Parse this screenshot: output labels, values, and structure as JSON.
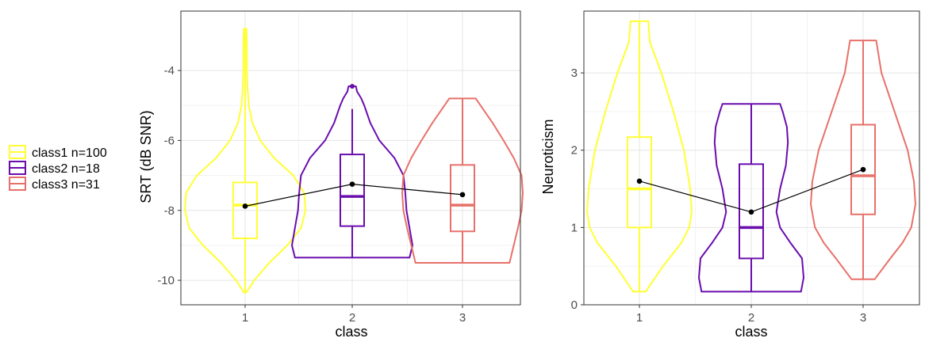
{
  "legend": {
    "items": [
      {
        "label": "class1 n=100",
        "color": "#FFFF33"
      },
      {
        "label": "class2 n=18",
        "color": "#6A0DAD"
      },
      {
        "label": "class3 n=31",
        "color": "#E8706A"
      }
    ]
  },
  "chart_data": [
    {
      "type": "violin",
      "xlabel": "class",
      "ylabel": "SRT (dB SNR)",
      "categories": [
        "1",
        "2",
        "3"
      ],
      "ylim": [
        -10.7,
        -2.3
      ],
      "yticks": [
        -10,
        -8,
        -6,
        -4
      ],
      "grid": true,
      "colors": [
        "#FFFF33",
        "#6A0DAD",
        "#E8706A"
      ],
      "boxes": [
        {
          "category": "1",
          "min": -10.35,
          "q1": -8.8,
          "median": -7.85,
          "q3": -7.2,
          "max": -2.8
        },
        {
          "category": "2",
          "min": -9.35,
          "q1": -8.45,
          "median": -7.6,
          "q3": -6.4,
          "max": -5.1,
          "outliers": [
            -4.45
          ]
        },
        {
          "category": "3",
          "min": -9.5,
          "q1": -8.6,
          "median": -7.85,
          "q3": -6.7,
          "max": -4.8
        }
      ],
      "violins": [
        {
          "category": "1",
          "profile": [
            [
              -10.35,
              0.02
            ],
            [
              -10.0,
              0.15
            ],
            [
              -9.5,
              0.4
            ],
            [
              -9.0,
              0.7
            ],
            [
              -8.5,
              0.93
            ],
            [
              -8.0,
              1.0
            ],
            [
              -7.5,
              0.98
            ],
            [
              -7.0,
              0.8
            ],
            [
              -6.5,
              0.48
            ],
            [
              -6.0,
              0.25
            ],
            [
              -5.5,
              0.12
            ],
            [
              -5.0,
              0.06
            ],
            [
              -4.5,
              0.04
            ],
            [
              -4.0,
              0.03
            ],
            [
              -3.5,
              0.03
            ],
            [
              -3.0,
              0.025
            ],
            [
              -2.8,
              0.02
            ]
          ]
        },
        {
          "category": "2",
          "profile": [
            [
              -9.35,
              0.95
            ],
            [
              -9.0,
              1.0
            ],
            [
              -8.5,
              0.95
            ],
            [
              -8.0,
              0.9
            ],
            [
              -7.5,
              0.88
            ],
            [
              -7.0,
              0.85
            ],
            [
              -6.5,
              0.7
            ],
            [
              -6.0,
              0.45
            ],
            [
              -5.5,
              0.3
            ],
            [
              -5.0,
              0.2
            ],
            [
              -4.8,
              0.15
            ],
            [
              -4.6,
              0.08
            ],
            [
              -4.45,
              0.06
            ]
          ]
        },
        {
          "category": "3",
          "profile": [
            [
              -9.5,
              0.78
            ],
            [
              -9.0,
              0.85
            ],
            [
              -8.5,
              0.92
            ],
            [
              -8.0,
              0.98
            ],
            [
              -7.5,
              1.0
            ],
            [
              -7.0,
              0.98
            ],
            [
              -6.5,
              0.85
            ],
            [
              -6.0,
              0.68
            ],
            [
              -5.5,
              0.5
            ],
            [
              -5.0,
              0.3
            ],
            [
              -4.8,
              0.22
            ]
          ]
        }
      ],
      "means": {
        "x": [
          "1",
          "2",
          "3"
        ],
        "y": [
          -7.88,
          -7.25,
          -7.55
        ]
      }
    },
    {
      "type": "violin",
      "xlabel": "class",
      "ylabel": "Neuroticism",
      "categories": [
        "1",
        "2",
        "3"
      ],
      "ylim": [
        0,
        3.8
      ],
      "yticks": [
        0,
        1,
        2,
        3
      ],
      "grid": true,
      "colors": [
        "#FFFF33",
        "#6A0DAD",
        "#E8706A"
      ],
      "boxes": [
        {
          "category": "1",
          "min": 0.17,
          "q1": 1.0,
          "median": 1.5,
          "q3": 2.17,
          "max": 3.67
        },
        {
          "category": "2",
          "min": 0.17,
          "q1": 0.6,
          "median": 1.0,
          "q3": 1.82,
          "max": 2.6
        },
        {
          "category": "3",
          "min": 0.33,
          "q1": 1.17,
          "median": 1.67,
          "q3": 2.33,
          "max": 3.42
        }
      ],
      "violins": [
        {
          "category": "1",
          "profile": [
            [
              0.17,
              0.12
            ],
            [
              0.5,
              0.45
            ],
            [
              0.8,
              0.8
            ],
            [
              1.0,
              0.95
            ],
            [
              1.2,
              1.0
            ],
            [
              1.5,
              0.97
            ],
            [
              2.0,
              0.85
            ],
            [
              2.5,
              0.65
            ],
            [
              3.0,
              0.42
            ],
            [
              3.4,
              0.2
            ],
            [
              3.67,
              0.17
            ]
          ]
        },
        {
          "category": "2",
          "profile": [
            [
              0.17,
              0.95
            ],
            [
              0.35,
              1.0
            ],
            [
              0.6,
              0.97
            ],
            [
              0.8,
              0.75
            ],
            [
              1.0,
              0.55
            ],
            [
              1.2,
              0.48
            ],
            [
              1.5,
              0.55
            ],
            [
              1.8,
              0.66
            ],
            [
              2.1,
              0.7
            ],
            [
              2.3,
              0.68
            ],
            [
              2.5,
              0.6
            ],
            [
              2.6,
              0.55
            ]
          ]
        },
        {
          "category": "3",
          "profile": [
            [
              0.33,
              0.22
            ],
            [
              0.6,
              0.52
            ],
            [
              0.8,
              0.75
            ],
            [
              1.0,
              0.92
            ],
            [
              1.3,
              1.0
            ],
            [
              1.6,
              0.97
            ],
            [
              2.0,
              0.85
            ],
            [
              2.5,
              0.6
            ],
            [
              3.0,
              0.35
            ],
            [
              3.42,
              0.25
            ]
          ]
        }
      ],
      "means": {
        "x": [
          "1",
          "2",
          "3"
        ],
        "y": [
          1.6,
          1.2,
          1.75
        ]
      }
    }
  ]
}
